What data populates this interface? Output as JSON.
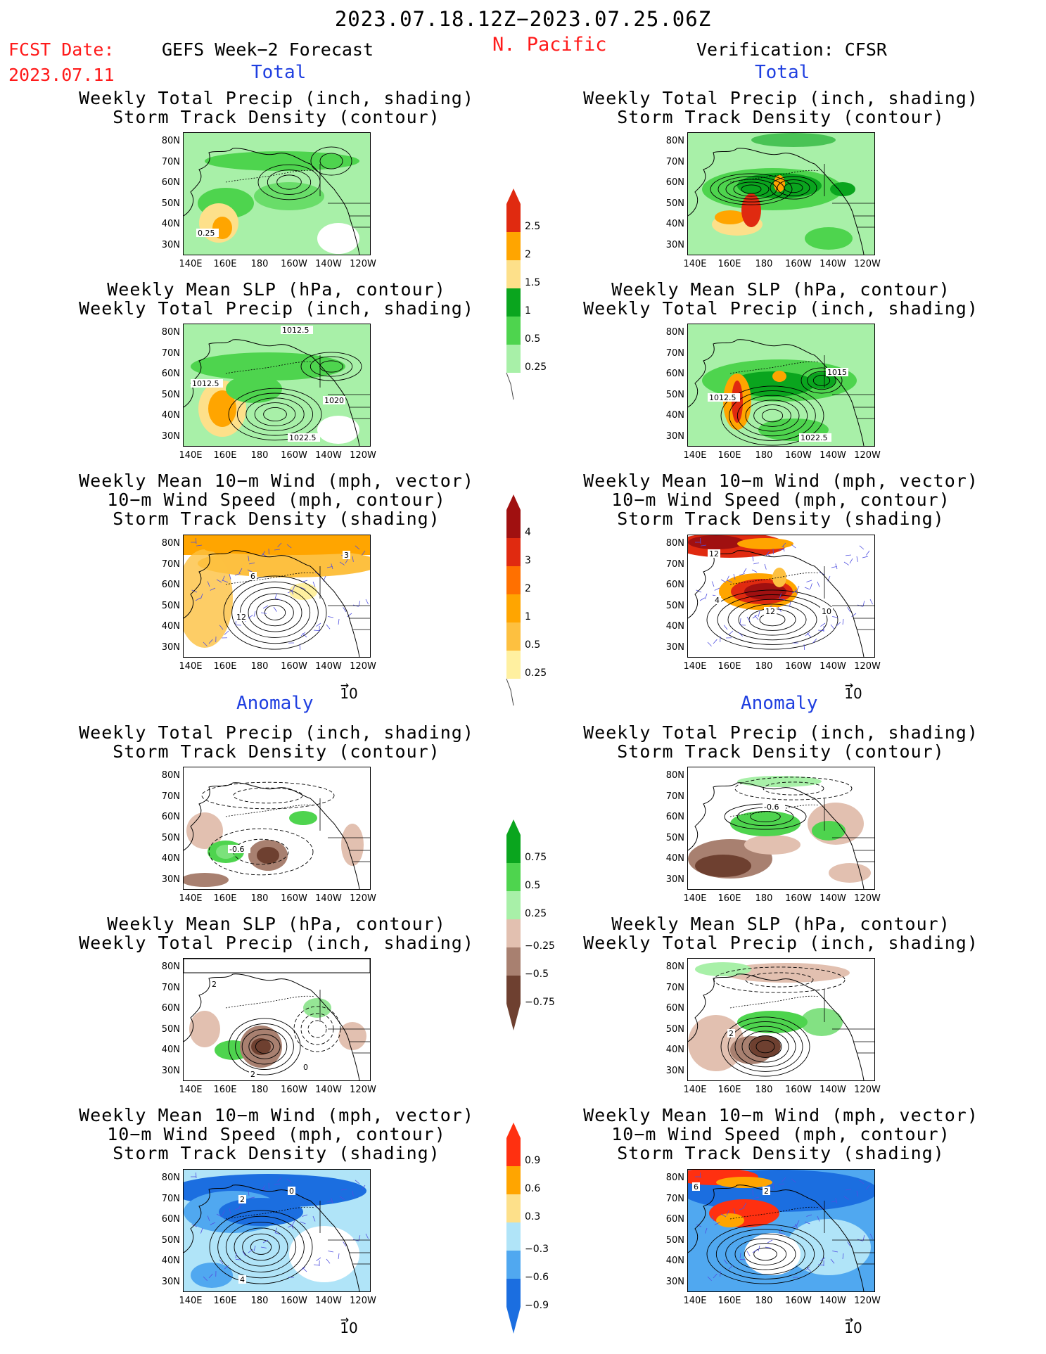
{
  "header": {
    "date_range": "2023.07.18.12Z−2023.07.25.06Z",
    "fcst_label": "FCST Date:",
    "fcst_date": "2023.07.11",
    "left_title": "GEFS Week−2 Forecast",
    "region": "N. Pacific",
    "right_title": "Verification: CFSR"
  },
  "sections": {
    "total": "Total",
    "anomaly": "Anomaly"
  },
  "panel_titles": {
    "precip_track": [
      "Weekly Total Precip (inch, shading)",
      "Storm Track Density (contour)"
    ],
    "slp_precip": [
      "Weekly Mean SLP (hPa, contour)",
      "Weekly Total Precip (inch, shading)"
    ],
    "wind_track": [
      "Weekly Mean 10−m Wind (mph, vector)",
      "10−m Wind Speed (mph, contour)",
      "Storm Track Density (shading)"
    ]
  },
  "axes": {
    "lat_labels": [
      "80N",
      "70N",
      "60N",
      "50N",
      "40N",
      "30N"
    ],
    "lon_labels": [
      "140E",
      "160E",
      "180",
      "160W",
      "140W",
      "120W"
    ],
    "vector_ref": "10"
  },
  "contour_labels": {
    "f1": [
      "0.25"
    ],
    "f2": [
      "1012.5",
      "1012.5",
      "1020",
      "1022.5"
    ],
    "v2": [
      "1015",
      "1012.5",
      "1022.5"
    ],
    "f3": [
      "6",
      "12",
      "3"
    ],
    "v3": [
      "12",
      "4",
      "12",
      "10"
    ],
    "f4": [
      "-0.6"
    ],
    "v4": [
      "-0.6"
    ],
    "f5": [
      "2",
      "2",
      "0"
    ],
    "v5": [
      "2"
    ],
    "f6": [
      "2",
      "0",
      "4"
    ],
    "v6": [
      "2",
      "6"
    ]
  },
  "chart_data": [
    {
      "type": "heatmap",
      "title": "Weekly Total Precip (inch)",
      "colorbar": {
        "labels": [
          "2.5",
          "2",
          "1.5",
          "1",
          "0.5",
          "0.25"
        ],
        "colors": [
          "#e02a10",
          "#ffa500",
          "#fde08a",
          "#0aa51e",
          "#4ed44e",
          "#a8f0a8"
        ]
      }
    },
    {
      "type": "heatmap",
      "title": "Storm Track Density",
      "colorbar": {
        "labels": [
          "4",
          "3",
          "2",
          "1",
          "0.5",
          "0.25"
        ],
        "colors": [
          "#a01010",
          "#e02a10",
          "#ff7000",
          "#ffa500",
          "#fdc040",
          "#fff0a0"
        ]
      }
    },
    {
      "type": "heatmap",
      "title": "Weekly Total Precip Anomaly (inch)",
      "colorbar": {
        "labels": [
          "0.75",
          "0.5",
          "0.25",
          "−0.25",
          "−0.5",
          "−0.75"
        ],
        "colors": [
          "#0aa51e",
          "#4ed44e",
          "#a8f0a8",
          "#e2c0b0",
          "#a88070",
          "#6e4030"
        ]
      }
    },
    {
      "type": "heatmap",
      "title": "Storm Track Density Anomaly",
      "colorbar": {
        "labels": [
          "0.9",
          "0.6",
          "0.3",
          "−0.3",
          "−0.6",
          "−0.9"
        ],
        "colors": [
          "#ff3010",
          "#ffa500",
          "#fde08a",
          "#b0e4f8",
          "#50a8f0",
          "#1b6ee0"
        ]
      }
    }
  ]
}
